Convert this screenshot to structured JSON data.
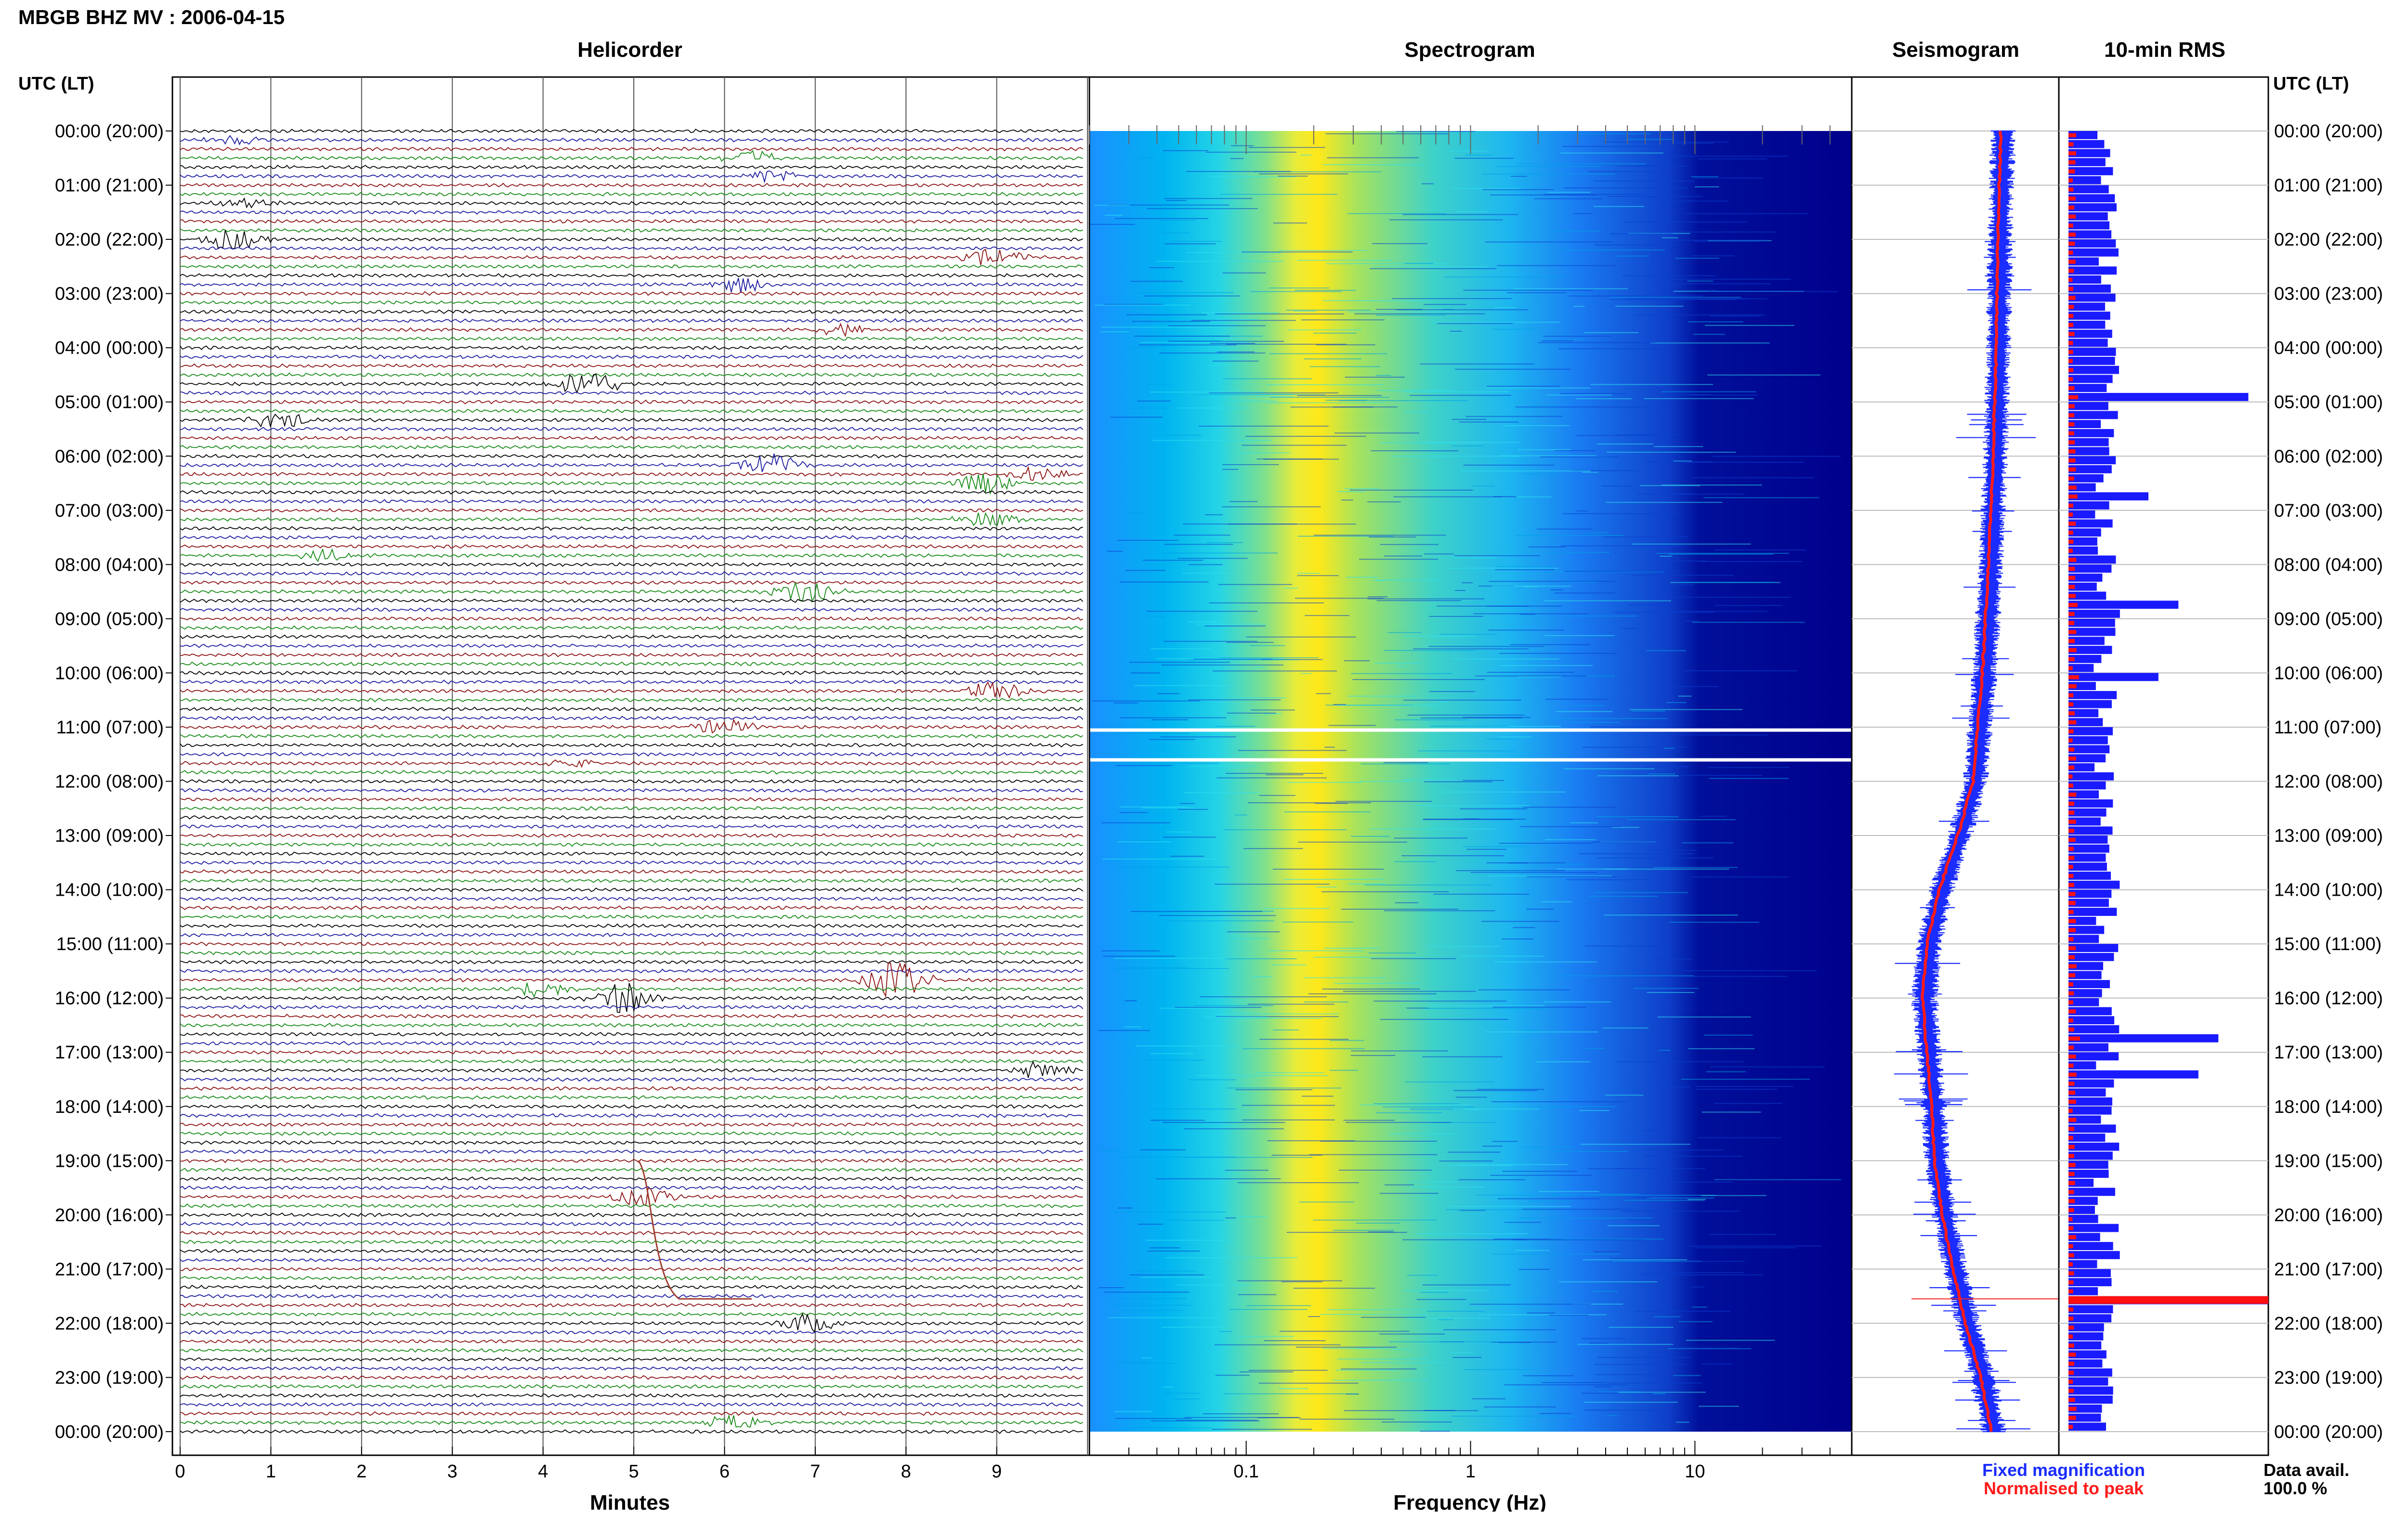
{
  "header": {
    "title": "MBGB BHZ MV : 2006-04-15",
    "utc_label": "UTC (LT)",
    "utc_label_right": "UTC (LT)"
  },
  "panels": {
    "helicorder": "Helicorder",
    "spectrogram": "Spectrogram",
    "seismogram": "Seismogram",
    "rms": "10-min RMS"
  },
  "time_labels": [
    "00:00 (20:00)",
    "01:00 (21:00)",
    "02:00 (22:00)",
    "03:00 (23:00)",
    "04:00 (00:00)",
    "05:00 (01:00)",
    "06:00 (02:00)",
    "07:00 (03:00)",
    "08:00 (04:00)",
    "09:00 (05:00)",
    "10:00 (06:00)",
    "11:00 (07:00)",
    "12:00 (08:00)",
    "13:00 (09:00)",
    "14:00 (10:00)",
    "15:00 (11:00)",
    "16:00 (12:00)",
    "17:00 (13:00)",
    "18:00 (14:00)",
    "19:00 (15:00)",
    "20:00 (16:00)",
    "21:00 (17:00)",
    "22:00 (18:00)",
    "23:00 (19:00)",
    "00:00 (20:00)"
  ],
  "axes": {
    "minutes_label": "Minutes",
    "minute_ticks": [
      "0",
      "1",
      "2",
      "3",
      "4",
      "5",
      "6",
      "7",
      "8",
      "9"
    ],
    "frequency_label": "Frequency (Hz)",
    "frequency_ticks": [
      "0.1",
      "1",
      "10"
    ]
  },
  "legend": {
    "fixed": "Fixed magnification",
    "normalised": "Normalised to peak",
    "fixed_color": "#1a2cff",
    "normalised_color": "#ff1a1a"
  },
  "data_avail": {
    "label": "Data avail.",
    "value": "100.0 %"
  },
  "colors": {
    "trace_cycle": [
      "#000000",
      "#1a1aa0",
      "#8b1010",
      "#168a16"
    ],
    "rms_fixed": "#1a1aff",
    "rms_normalised": "#ff1010",
    "spectro_low": "#00008c",
    "spectro_high": "#ffff00"
  },
  "chart_data": {
    "type": "heatmap",
    "title": "MBGB BHZ MV : 2006-04-15",
    "helicorder": {
      "x_unit": "minutes",
      "xlim": [
        0,
        10
      ],
      "lines": 144,
      "line_minutes": 10,
      "events": [
        {
          "line": 1,
          "minute": 0.6,
          "amp": 0.5
        },
        {
          "line": 3,
          "minute": 6.3,
          "amp": 0.8
        },
        {
          "line": 5,
          "minute": 6.5,
          "amp": 0.7
        },
        {
          "line": 8,
          "minute": 0.7,
          "amp": 0.5
        },
        {
          "line": 12,
          "minute": 0.6,
          "amp": 1.2
        },
        {
          "line": 14,
          "minute": 9.0,
          "amp": 1.0
        },
        {
          "line": 17,
          "minute": 6.2,
          "amp": 0.9
        },
        {
          "line": 22,
          "minute": 7.3,
          "amp": 0.6
        },
        {
          "line": 28,
          "minute": 4.5,
          "amp": 1.6
        },
        {
          "line": 32,
          "minute": 1.1,
          "amp": 0.9
        },
        {
          "line": 37,
          "minute": 6.5,
          "amp": 1.4
        },
        {
          "line": 38,
          "minute": 9.5,
          "amp": 0.9
        },
        {
          "line": 39,
          "minute": 8.9,
          "amp": 1.2
        },
        {
          "line": 43,
          "minute": 8.9,
          "amp": 0.8
        },
        {
          "line": 47,
          "minute": 1.6,
          "amp": 0.6
        },
        {
          "line": 51,
          "minute": 6.9,
          "amp": 1.5
        },
        {
          "line": 62,
          "minute": 9.0,
          "amp": 1.0
        },
        {
          "line": 66,
          "minute": 6.0,
          "amp": 0.9
        },
        {
          "line": 70,
          "minute": 4.3,
          "amp": 0.6
        },
        {
          "line": 94,
          "minute": 7.9,
          "amp": 2.0
        },
        {
          "line": 95,
          "minute": 4.0,
          "amp": 0.9
        },
        {
          "line": 96,
          "minute": 4.9,
          "amp": 1.6
        },
        {
          "line": 104,
          "minute": 9.5,
          "amp": 0.9
        },
        {
          "line": 118,
          "minute": 5.1,
          "amp": 1.1
        },
        {
          "line": 132,
          "minute": 6.9,
          "amp": 1.0
        },
        {
          "line": 143,
          "minute": 6.1,
          "amp": 0.8
        }
      ]
    },
    "spectrogram": {
      "x_scale": "log",
      "xlim_hz": [
        0.02,
        50
      ],
      "y_unit": "hours UTC",
      "ylim": [
        0,
        24
      ],
      "peak_frequency_hz": 0.25,
      "data_gaps_hours": [
        11.05,
        11.6
      ]
    },
    "seismogram": {
      "series": [
        {
          "name": "Fixed magnification"
        },
        {
          "name": "Normalised to peak"
        }
      ],
      "normalised_profile": [
        [
          0,
          0.78
        ],
        [
          2,
          0.76
        ],
        [
          4,
          0.75
        ],
        [
          6,
          0.73
        ],
        [
          8,
          0.7
        ],
        [
          10,
          0.66
        ],
        [
          12,
          0.6
        ],
        [
          13,
          0.5
        ],
        [
          14,
          0.38
        ],
        [
          15,
          0.3
        ],
        [
          16,
          0.27
        ],
        [
          17,
          0.3
        ],
        [
          18,
          0.33
        ],
        [
          19,
          0.35
        ],
        [
          20,
          0.4
        ],
        [
          21,
          0.47
        ],
        [
          22,
          0.55
        ],
        [
          23,
          0.65
        ],
        [
          24,
          0.72
        ]
      ],
      "xlim": [
        0,
        1
      ]
    },
    "rms": {
      "interval_minutes": 10,
      "count": 144,
      "xlim": [
        0,
        1
      ],
      "spikes": [
        {
          "index": 29,
          "value": 0.9
        },
        {
          "index": 40,
          "value": 0.4
        },
        {
          "index": 52,
          "value": 0.55
        },
        {
          "index": 60,
          "value": 0.45
        },
        {
          "index": 100,
          "value": 0.75
        },
        {
          "index": 104,
          "value": 0.65
        },
        {
          "index": 129,
          "value": 1.0
        }
      ]
    }
  }
}
